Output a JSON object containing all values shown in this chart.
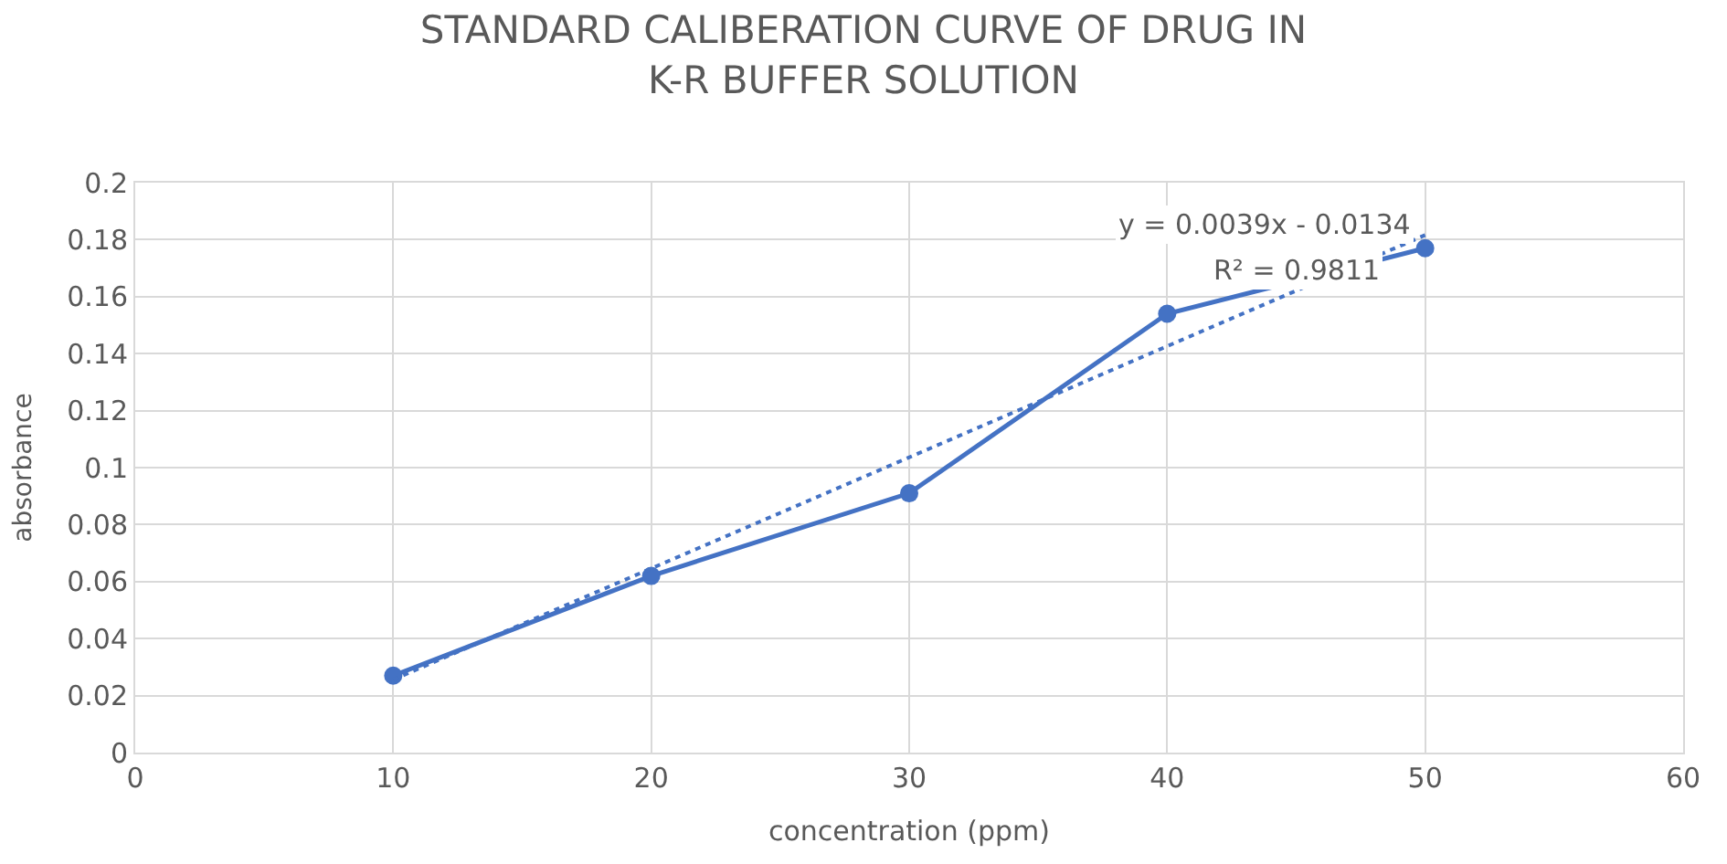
{
  "chart_data": {
    "type": "line",
    "title": "STANDARD CALIBERATION CURVE OF DRUG IN\nK-R BUFFER SOLUTION",
    "xlabel": "concentration (ppm)",
    "ylabel": "absorbance",
    "x": [
      10,
      20,
      30,
      40,
      50
    ],
    "series": [
      {
        "color": "#4472c4",
        "values": [
          0.027,
          0.062,
          0.091,
          0.154,
          0.177
        ],
        "marker": "circle",
        "line_style": "solid"
      },
      {
        "type": "line",
        "color": "#4472c4",
        "x": [
          10,
          50
        ],
        "values": [
          0.0256,
          0.1816
        ],
        "marker": "none",
        "line_style": "dotted"
      }
    ],
    "annotations": [
      "y = 0.0039x - 0.0134",
      "R² = 0.9811"
    ],
    "xlim": [
      0,
      60
    ],
    "xticks": [
      0,
      10,
      20,
      30,
      40,
      50,
      60
    ],
    "ylim": [
      0,
      0.2
    ],
    "yticks": [
      0,
      0.02,
      0.04,
      0.06,
      0.08,
      0.1,
      0.12,
      0.14,
      0.16,
      0.18,
      0.2
    ],
    "grid": true
  }
}
